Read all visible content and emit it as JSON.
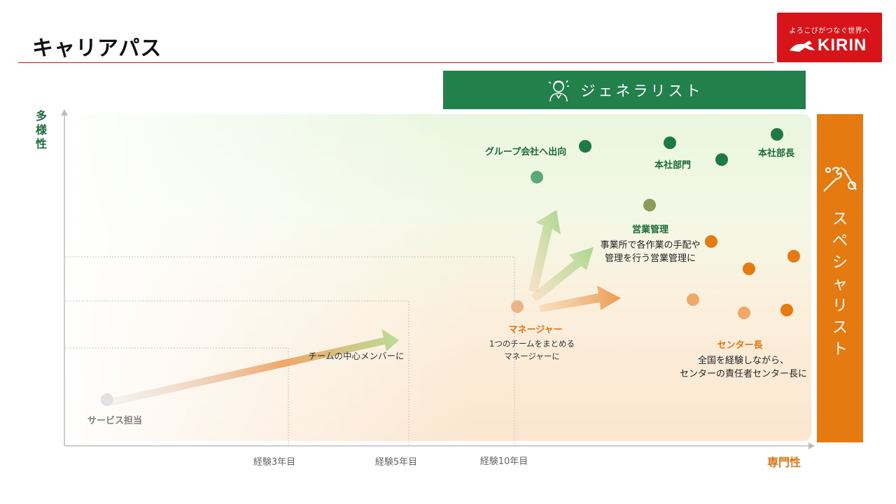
{
  "header": {
    "title": "キャリアパス"
  },
  "logo": {
    "tagline": "よろこびがつなぐ世界へ",
    "brand": "KIRIN"
  },
  "bands": {
    "generalist": "ジェネラリスト",
    "specialist": "スペシャリスト"
  },
  "axes": {
    "y_label": "多様性",
    "x_label": "専門性",
    "x_ticks": [
      "経験3年目",
      "経験5年目",
      "経験10年目"
    ]
  },
  "stages": {
    "service": {
      "title": "サービス担当"
    },
    "core_member": {
      "desc": "チームの中心メンバーに"
    },
    "manager": {
      "title": "マネージャー",
      "desc1": "1つのチームをまとめる",
      "desc2": "マネージャーに"
    },
    "group_company": {
      "title": "グループ会社へ出向"
    },
    "hq_dept": {
      "title": "本社部門"
    },
    "hq_head": {
      "title": "本社部長"
    },
    "sales_mgmt": {
      "title": "営業管理",
      "desc1": "事業所で各作業の手配や",
      "desc2": "管理を行う営業管理に"
    },
    "center_head": {
      "title": "センター長",
      "desc1": "全国を経験しながら、",
      "desc2": "センターの責任者センター長に"
    }
  },
  "colors": {
    "accent_red": "#c8161d",
    "generalist_green": "#22804a",
    "specialist_orange": "#e57a10"
  }
}
